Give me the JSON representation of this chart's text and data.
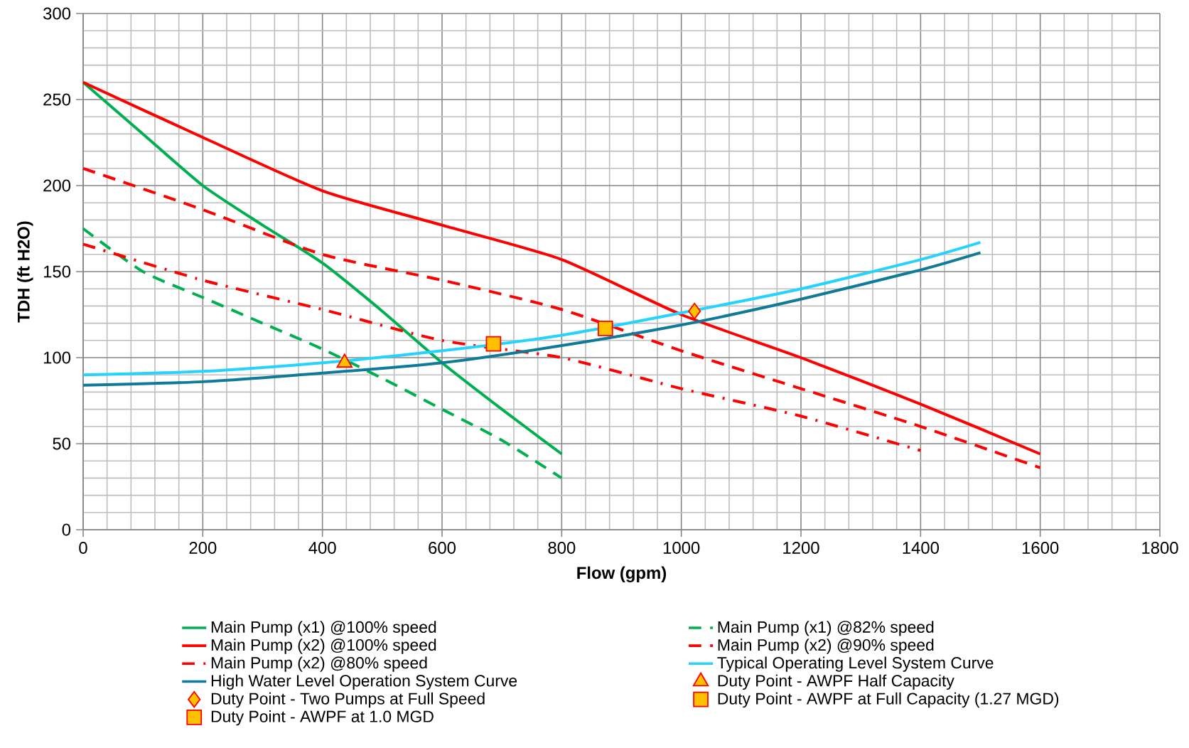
{
  "chart_data": {
    "type": "line",
    "xlabel": "Flow (gpm)",
    "ylabel": "TDH (ft H2O)",
    "xlim": [
      0,
      1800
    ],
    "ylim": [
      0,
      300
    ],
    "xticks": [
      0,
      200,
      400,
      600,
      800,
      1000,
      1200,
      1400,
      1600,
      1800
    ],
    "yticks": [
      0,
      50,
      100,
      150,
      200,
      250,
      300
    ],
    "grid": true,
    "legend": "bottom",
    "series": [
      {
        "name": "Main Pump (x1) @100% speed",
        "color": "#00b050",
        "line_style": "solid",
        "x": [
          0,
          100,
          200,
          300,
          400,
          500,
          600,
          700,
          800
        ],
        "values": [
          260,
          230,
          200,
          177,
          155,
          127,
          97,
          70,
          44
        ]
      },
      {
        "name": "Main Pump (x1) @82% speed",
        "color": "#00b050",
        "line_style": "dashed",
        "x": [
          0,
          100,
          200,
          300,
          400,
          500,
          600,
          700,
          800
        ],
        "values": [
          175,
          150,
          135,
          120,
          105,
          88,
          70,
          52,
          30
        ]
      },
      {
        "name": "Main Pump (x2) @100% speed",
        "color": "#ff0000",
        "line_style": "solid",
        "x": [
          0,
          200,
          400,
          600,
          800,
          1000,
          1200,
          1400,
          1600
        ],
        "values": [
          260,
          228,
          197,
          177,
          157,
          125,
          100,
          73,
          44
        ]
      },
      {
        "name": "Main Pump (x2) @90% speed",
        "color": "#ff0000",
        "line_style": "dashed",
        "x": [
          0,
          200,
          400,
          600,
          800,
          1000,
          1200,
          1400,
          1600
        ],
        "values": [
          210,
          186,
          160,
          145,
          128,
          104,
          82,
          60,
          36
        ]
      },
      {
        "name": "Main Pump (x2) @80% speed",
        "color": "#ff0000",
        "line_style": "dashdot",
        "x": [
          0,
          200,
          400,
          600,
          800,
          1000,
          1200,
          1400
        ],
        "values": [
          166,
          145,
          128,
          110,
          100,
          82,
          66,
          46
        ]
      },
      {
        "name": "Typical Operating Level System Curve",
        "color": "#25d3fc",
        "line_style": "solid",
        "x": [
          0,
          200,
          400,
          600,
          800,
          1000,
          1200,
          1400,
          1500
        ],
        "values": [
          90,
          92,
          97,
          104,
          113,
          126,
          140,
          157,
          167
        ]
      },
      {
        "name": "High Water Level Operation System Curve",
        "color": "#0f7b99",
        "line_style": "solid",
        "x": [
          0,
          200,
          400,
          600,
          800,
          1000,
          1200,
          1400,
          1500
        ],
        "values": [
          84,
          86,
          91,
          97,
          107,
          119,
          134,
          151,
          161
        ]
      },
      {
        "name": "Duty Point - AWPF Half Capacity",
        "type": "scatter",
        "marker": "triangle",
        "color": "#ffc000",
        "x": [
          437
        ],
        "values": [
          97
        ]
      },
      {
        "name": "Duty Point - Two Pumps at Full Speed",
        "type": "scatter",
        "marker": "diamond",
        "color": "#ffc000",
        "x": [
          1022
        ],
        "values": [
          127
        ]
      },
      {
        "name": "Duty Point - AWPF at Full Capacity (1.27 MGD)",
        "type": "scatter",
        "marker": "square",
        "color": "#ffc000",
        "x": [
          873
        ],
        "values": [
          117
        ]
      },
      {
        "name": "Duty Point - AWPF at 1.0 MGD",
        "type": "scatter",
        "marker": "square",
        "color": "#ffc000",
        "x": [
          686
        ],
        "values": [
          108
        ]
      }
    ]
  }
}
